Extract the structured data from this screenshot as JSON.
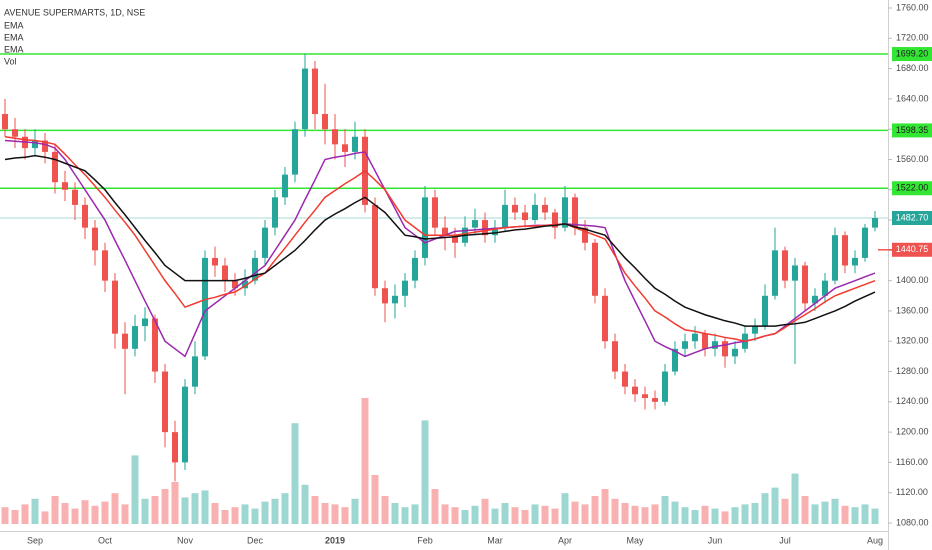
{
  "chart_data": {
    "type": "candlestick",
    "title": "AVENUE SUPERMARTS, 1D, NSE",
    "categories": [
      null,
      null,
      null,
      "Sep",
      null,
      null,
      null,
      null,
      null,
      null,
      "Oct",
      null,
      null,
      null,
      null,
      null,
      null,
      null,
      "Nov",
      null,
      null,
      null,
      null,
      null,
      null,
      "Dec",
      null,
      null,
      null,
      null,
      null,
      null,
      null,
      "2019",
      null,
      null,
      null,
      null,
      null,
      null,
      null,
      null,
      "Feb",
      null,
      null,
      null,
      null,
      null,
      null,
      "Mar",
      null,
      null,
      null,
      null,
      null,
      null,
      "Apr",
      null,
      null,
      null,
      null,
      null,
      null,
      "May",
      null,
      null,
      null,
      null,
      null,
      null,
      null,
      "Jun",
      null,
      null,
      null,
      null,
      null,
      null,
      "Jul",
      null,
      null,
      null,
      null,
      null,
      null,
      null,
      null,
      "Aug"
    ],
    "ohlc": [
      [
        1620,
        1640,
        1590,
        1600
      ],
      [
        1600,
        1615,
        1575,
        1590
      ],
      [
        1590,
        1600,
        1560,
        1575
      ],
      [
        1575,
        1600,
        1565,
        1585
      ],
      [
        1585,
        1595,
        1555,
        1570
      ],
      [
        1570,
        1580,
        1515,
        1530
      ],
      [
        1530,
        1545,
        1505,
        1520
      ],
      [
        1520,
        1530,
        1480,
        1500
      ],
      [
        1500,
        1510,
        1455,
        1470
      ],
      [
        1470,
        1480,
        1420,
        1440
      ],
      [
        1440,
        1450,
        1385,
        1400
      ],
      [
        1400,
        1410,
        1310,
        1330
      ],
      [
        1330,
        1345,
        1250,
        1310
      ],
      [
        1310,
        1355,
        1300,
        1340
      ],
      [
        1340,
        1365,
        1320,
        1350
      ],
      [
        1350,
        1355,
        1265,
        1280
      ],
      [
        1280,
        1290,
        1180,
        1200
      ],
      [
        1200,
        1215,
        1135,
        1160
      ],
      [
        1160,
        1270,
        1150,
        1260
      ],
      [
        1260,
        1320,
        1250,
        1300
      ],
      [
        1300,
        1440,
        1295,
        1430
      ],
      [
        1430,
        1445,
        1405,
        1420
      ],
      [
        1420,
        1430,
        1385,
        1400
      ],
      [
        1400,
        1410,
        1380,
        1390
      ],
      [
        1390,
        1415,
        1380,
        1400
      ],
      [
        1400,
        1440,
        1395,
        1430
      ],
      [
        1430,
        1480,
        1420,
        1470
      ],
      [
        1470,
        1520,
        1460,
        1510
      ],
      [
        1510,
        1550,
        1500,
        1540
      ],
      [
        1540,
        1610,
        1530,
        1600
      ],
      [
        1600,
        1700,
        1590,
        1680
      ],
      [
        1680,
        1690,
        1600,
        1620
      ],
      [
        1620,
        1660,
        1580,
        1600
      ],
      [
        1600,
        1620,
        1560,
        1580
      ],
      [
        1580,
        1600,
        1550,
        1570
      ],
      [
        1570,
        1610,
        1560,
        1590
      ],
      [
        1590,
        1600,
        1490,
        1500
      ],
      [
        1500,
        1510,
        1380,
        1390
      ],
      [
        1390,
        1400,
        1345,
        1370
      ],
      [
        1370,
        1395,
        1350,
        1380
      ],
      [
        1380,
        1410,
        1365,
        1400
      ],
      [
        1400,
        1440,
        1390,
        1430
      ],
      [
        1430,
        1525,
        1420,
        1510
      ],
      [
        1510,
        1520,
        1460,
        1470
      ],
      [
        1470,
        1485,
        1440,
        1460
      ],
      [
        1460,
        1470,
        1430,
        1450
      ],
      [
        1450,
        1485,
        1445,
        1470
      ],
      [
        1470,
        1495,
        1460,
        1480
      ],
      [
        1480,
        1490,
        1450,
        1460
      ],
      [
        1460,
        1480,
        1450,
        1470
      ],
      [
        1470,
        1520,
        1465,
        1500
      ],
      [
        1500,
        1510,
        1480,
        1490
      ],
      [
        1490,
        1500,
        1470,
        1480
      ],
      [
        1480,
        1515,
        1475,
        1500
      ],
      [
        1500,
        1510,
        1480,
        1490
      ],
      [
        1490,
        1495,
        1455,
        1470
      ],
      [
        1470,
        1525,
        1465,
        1510
      ],
      [
        1510,
        1515,
        1460,
        1470
      ],
      [
        1470,
        1480,
        1440,
        1450
      ],
      [
        1450,
        1455,
        1370,
        1380
      ],
      [
        1380,
        1390,
        1310,
        1320
      ],
      [
        1320,
        1330,
        1270,
        1280
      ],
      [
        1280,
        1290,
        1250,
        1260
      ],
      [
        1260,
        1270,
        1240,
        1250
      ],
      [
        1250,
        1260,
        1230,
        1245
      ],
      [
        1245,
        1255,
        1230,
        1240
      ],
      [
        1240,
        1290,
        1235,
        1280
      ],
      [
        1280,
        1320,
        1275,
        1310
      ],
      [
        1310,
        1330,
        1300,
        1320
      ],
      [
        1320,
        1340,
        1310,
        1330
      ],
      [
        1330,
        1335,
        1300,
        1310
      ],
      [
        1310,
        1330,
        1300,
        1320
      ],
      [
        1320,
        1325,
        1285,
        1300
      ],
      [
        1300,
        1320,
        1290,
        1310
      ],
      [
        1310,
        1340,
        1305,
        1330
      ],
      [
        1330,
        1350,
        1320,
        1340
      ],
      [
        1340,
        1395,
        1335,
        1380
      ],
      [
        1380,
        1470,
        1375,
        1440
      ],
      [
        1440,
        1445,
        1390,
        1400
      ],
      [
        1400,
        1430,
        1290,
        1420
      ],
      [
        1420,
        1425,
        1360,
        1370
      ],
      [
        1370,
        1390,
        1360,
        1380
      ],
      [
        1380,
        1410,
        1370,
        1400
      ],
      [
        1400,
        1470,
        1395,
        1460
      ],
      [
        1460,
        1465,
        1410,
        1420
      ],
      [
        1420,
        1440,
        1410,
        1430
      ],
      [
        1430,
        1475,
        1425,
        1470
      ],
      [
        1470,
        1492,
        1465,
        1482.7
      ]
    ],
    "up_color": "#26a69a",
    "down_color": "#ef5350",
    "series": [
      {
        "name": "EMA",
        "color": "#9c27b0",
        "values": [
          1585,
          1584,
          1583,
          1582,
          1580,
          1575,
          1560,
          1540,
          1520,
          1500,
          1480,
          1453,
          1427,
          1400,
          1373,
          1347,
          1320,
          1310,
          1300,
          1330,
          1360,
          1370,
          1380,
          1390,
          1400,
          1410,
          1420,
          1440,
          1460,
          1480,
          1507,
          1533,
          1560,
          1563,
          1565,
          1568,
          1570,
          1545,
          1520,
          1495,
          1470,
          1460,
          1450,
          1455,
          1460,
          1465,
          1466,
          1467,
          1468,
          1469,
          1470,
          1471,
          1472,
          1473,
          1473,
          1474,
          1475,
          1474,
          1473,
          1472,
          1470,
          1435,
          1400,
          1373,
          1347,
          1320,
          1313,
          1307,
          1300,
          1305,
          1310,
          1313,
          1315,
          1318,
          1320,
          1323,
          1327,
          1330,
          1340,
          1350,
          1360,
          1370,
          1380,
          1390,
          1395,
          1400,
          1405,
          1410
        ]
      },
      {
        "name": "EMA",
        "color": "#f23a2e",
        "values": [
          1590,
          1588,
          1586,
          1585,
          1583,
          1580,
          1567,
          1553,
          1540,
          1525,
          1510,
          1493,
          1477,
          1460,
          1440,
          1420,
          1400,
          1383,
          1365,
          1370,
          1375,
          1378,
          1382,
          1385,
          1393,
          1402,
          1410,
          1427,
          1443,
          1460,
          1477,
          1493,
          1510,
          1519,
          1528,
          1536,
          1545,
          1533,
          1520,
          1500,
          1480,
          1470,
          1460,
          1460,
          1460,
          1460,
          1462,
          1464,
          1466,
          1468,
          1470,
          1471,
          1472,
          1472,
          1473,
          1474,
          1475,
          1470,
          1465,
          1460,
          1455,
          1433,
          1410,
          1393,
          1377,
          1360,
          1352,
          1343,
          1335,
          1333,
          1330,
          1328,
          1325,
          1323,
          1320,
          1323,
          1327,
          1330,
          1338,
          1347,
          1355,
          1363,
          1372,
          1380,
          1385,
          1390,
          1395,
          1400
        ]
      },
      {
        "name": "EMA",
        "color": "#111111",
        "values": [
          1560,
          1562,
          1563,
          1565,
          1563,
          1560,
          1555,
          1550,
          1545,
          1533,
          1520,
          1503,
          1487,
          1470,
          1453,
          1437,
          1420,
          1410,
          1400,
          1400,
          1400,
          1400,
          1400,
          1400,
          1403,
          1407,
          1410,
          1420,
          1430,
          1440,
          1453,
          1467,
          1480,
          1488,
          1495,
          1503,
          1510,
          1500,
          1490,
          1475,
          1460,
          1458,
          1455,
          1456,
          1457,
          1458,
          1460,
          1461,
          1462,
          1463,
          1465,
          1467,
          1468,
          1470,
          1472,
          1473,
          1475,
          1471,
          1468,
          1464,
          1460,
          1445,
          1430,
          1417,
          1403,
          1390,
          1382,
          1373,
          1365,
          1360,
          1355,
          1351,
          1347,
          1344,
          1340,
          1340,
          1340,
          1340,
          1342,
          1343,
          1345,
          1350,
          1355,
          1360,
          1366,
          1373,
          1379,
          1385
        ]
      }
    ],
    "volume": {
      "name": "Vol",
      "lim": [
        0,
        100
      ],
      "values": [
        12,
        10,
        14,
        18,
        9,
        20,
        15,
        11,
        17,
        13,
        16,
        22,
        14,
        49,
        18,
        20,
        25,
        30,
        19,
        22,
        24,
        15,
        10,
        12,
        14,
        11,
        16,
        18,
        22,
        72,
        28,
        20,
        15,
        14,
        12,
        18,
        90,
        35,
        20,
        15,
        12,
        14,
        74,
        25,
        14,
        12,
        10,
        13,
        18,
        11,
        15,
        12,
        10,
        14,
        13,
        11,
        22,
        16,
        14,
        20,
        25,
        18,
        15,
        13,
        12,
        14,
        20,
        16,
        12,
        10,
        13,
        11,
        9,
        12,
        14,
        15,
        22,
        26,
        18,
        36,
        20,
        14,
        16,
        18,
        13,
        12,
        14,
        11
      ]
    },
    "ylim": [
      1080,
      1760
    ],
    "yticks": [
      {
        "value": 1080,
        "label": "1080.00"
      },
      {
        "value": 1120,
        "label": "1120.00"
      },
      {
        "value": 1160,
        "label": "1160.00"
      },
      {
        "value": 1200,
        "label": "1200.00"
      },
      {
        "value": 1240,
        "label": "1240.00"
      },
      {
        "value": 1280,
        "label": "1280.00"
      },
      {
        "value": 1320,
        "label": "1320.00"
      },
      {
        "value": 1360,
        "label": "1360.00"
      },
      {
        "value": 1400,
        "label": "1400.00"
      },
      {
        "value": 1440,
        "label": "1440.00"
      },
      {
        "value": 1480,
        "label": "1480.00"
      },
      {
        "value": 1520,
        "label": "1520.00"
      },
      {
        "value": 1560,
        "label": "1560.00"
      },
      {
        "value": 1600,
        "label": "1600.00"
      },
      {
        "value": 1640,
        "label": "1640.00"
      },
      {
        "value": 1680,
        "label": "1680.00"
      },
      {
        "value": 1720,
        "label": "1720.00"
      },
      {
        "value": 1760,
        "label": "1760.00"
      }
    ],
    "levels": [
      {
        "value": 1699.2,
        "label": "1699.20",
        "color": "#33e633"
      },
      {
        "value": 1598.35,
        "label": "1598.35",
        "color": "#33e633"
      },
      {
        "value": 1522,
        "label": "1522.00",
        "color": "#33e633"
      }
    ],
    "price_marks": [
      {
        "value": 1482.7,
        "label": "1482.70",
        "color": "#26a69a"
      },
      {
        "value": 1440.75,
        "label": "1440.75",
        "color": "#ef5350"
      }
    ]
  }
}
